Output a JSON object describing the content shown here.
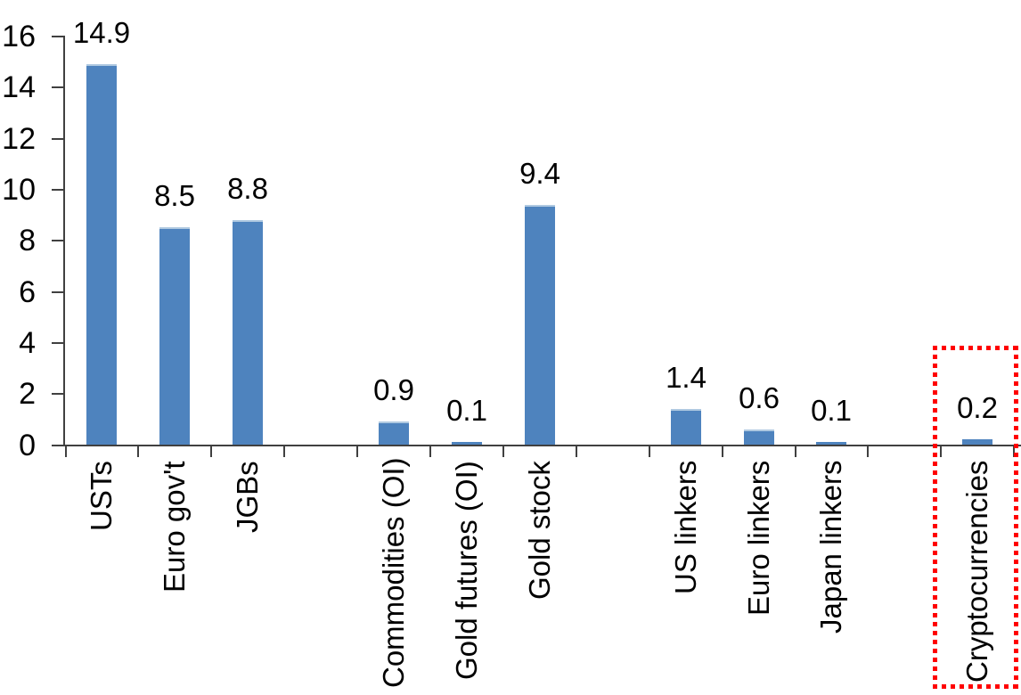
{
  "chart_data": {
    "type": "bar",
    "title": "",
    "xlabel": "",
    "ylabel": "",
    "categories": [
      "USTs",
      "Euro gov't",
      "JGBs",
      "",
      "Commodities (OI)",
      "Gold futures (OI)",
      "Gold stock",
      "",
      "US linkers",
      "Euro linkers",
      "Japan linkers",
      "",
      "Cryptocurrencies"
    ],
    "values": [
      14.9,
      8.5,
      8.8,
      null,
      0.9,
      0.1,
      9.4,
      null,
      1.4,
      0.6,
      0.1,
      null,
      0.2
    ],
    "data_labels": [
      "14.9",
      "8.5",
      "8.8",
      "",
      "0.9",
      "0.1",
      "9.4",
      "",
      "1.4",
      "0.6",
      "0.1",
      "",
      "0.2"
    ],
    "yticks": [
      0,
      2,
      4,
      6,
      8,
      10,
      12,
      14,
      16
    ],
    "ylim": [
      0,
      16
    ],
    "grid": false,
    "legend": null,
    "x_label_rotation": "90-degrees-ccw-reading-bottom-to-top",
    "colors": {
      "bar": "#4E83BE",
      "bar_top_edge": "#AFC9E1",
      "axis": "#404040",
      "text": "#000000",
      "highlight": "#FF0000"
    },
    "highlight": {
      "category": "Cryptocurrencies",
      "shape": "red-dotted-rectangle"
    }
  }
}
